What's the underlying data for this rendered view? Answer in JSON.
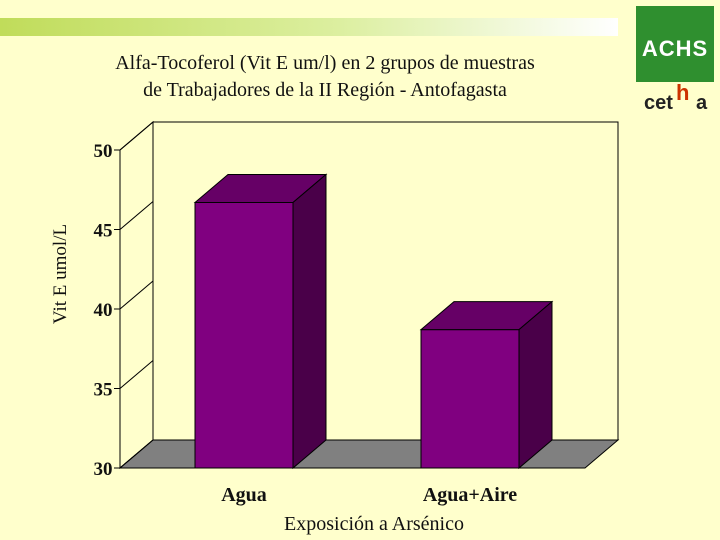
{
  "brand": {
    "logo_text": "ACHS",
    "sub_logo": [
      "cet",
      "h",
      "a"
    ]
  },
  "chart_data": {
    "type": "bar",
    "title": [
      "Alfa-Tocoferol (Vit E um/l) en 2 grupos de muestras",
      "de Trabajadores de la II Región - Antofagasta"
    ],
    "categories": [
      "Agua",
      "Agua+Aire"
    ],
    "values": [
      46.7,
      38.7
    ],
    "xlabel": "Exposición a Arsénico",
    "ylabel": "Vit E umol/L",
    "ylim": [
      30,
      50
    ],
    "yticks": [
      30,
      35,
      40,
      45,
      50
    ],
    "grid": false,
    "legend": "none",
    "colors": {
      "bar_front": "#800080",
      "bar_top": "#660066",
      "bar_side": "#4a0049",
      "floor": "#808080",
      "wall": "#ffffcc"
    }
  }
}
